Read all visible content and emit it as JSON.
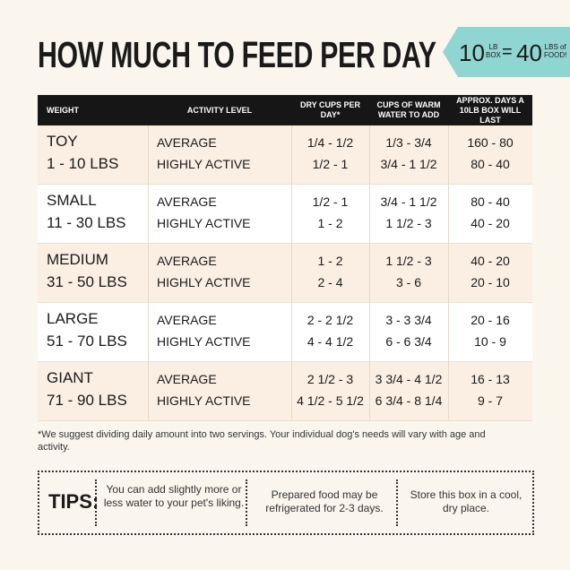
{
  "header": {
    "title": "HOW MUCH TO FEED PER DAY",
    "badge": {
      "num1": "10",
      "unit1_top": "LB",
      "unit1_bottom": "BOX",
      "equals": "=",
      "num2": "40",
      "unit2_top": "LBS of",
      "unit2_bottom": "FOOD!"
    }
  },
  "table": {
    "columns": [
      "WEIGHT",
      "ACTIVITY LEVEL",
      "DRY CUPS PER DAY*",
      "CUPS OF WARM WATER TO ADD",
      "APPROX. DAYS A 10LB BOX WILL LAST"
    ],
    "rows": [
      {
        "size": "TOY",
        "range": "1 - 10 LBS",
        "levels": [
          "AVERAGE",
          "HIGHLY ACTIVE"
        ],
        "dry": [
          "1/4 - 1/2",
          "1/2 - 1"
        ],
        "water": [
          "1/3 - 3/4",
          "3/4 - 1 1/2"
        ],
        "days": [
          "160 - 80",
          "80 - 40"
        ]
      },
      {
        "size": "SMALL",
        "range": "11 - 30 LBS",
        "levels": [
          "AVERAGE",
          "HIGHLY ACTIVE"
        ],
        "dry": [
          "1/2 - 1",
          "1 - 2"
        ],
        "water": [
          "3/4 - 1 1/2",
          "1 1/2 - 3"
        ],
        "days": [
          "80 - 40",
          "40 - 20"
        ]
      },
      {
        "size": "MEDIUM",
        "range": "31 - 50 LBS",
        "levels": [
          "AVERAGE",
          "HIGHLY ACTIVE"
        ],
        "dry": [
          "1 - 2",
          "2 - 4"
        ],
        "water": [
          "1 1/2 - 3",
          "3 - 6"
        ],
        "days": [
          "40 - 20",
          "20 - 10"
        ]
      },
      {
        "size": "LARGE",
        "range": "51 - 70 LBS",
        "levels": [
          "AVERAGE",
          "HIGHLY ACTIVE"
        ],
        "dry": [
          "2 - 2 1/2",
          "4 - 4 1/2"
        ],
        "water": [
          "3 - 3 3/4",
          "6 - 6 3/4"
        ],
        "days": [
          "20 - 16",
          "10 - 9"
        ]
      },
      {
        "size": "GIANT",
        "range": "71 - 90 LBS",
        "levels": [
          "AVERAGE",
          "HIGHLY ACTIVE"
        ],
        "dry": [
          "2 1/2 - 3",
          "4 1/2 - 5 1/2"
        ],
        "water": [
          "3 3/4 - 4 1/2",
          "6 3/4 - 8 1/4"
        ],
        "days": [
          "16 - 13",
          "9 - 7"
        ]
      }
    ]
  },
  "footnote": "*We suggest dividing daily amount into two servings. Your individual dog's needs will vary with age and activity.",
  "tips": {
    "label": "TIPS:",
    "items": [
      "You can add slightly more or less water to your pet's liking.",
      "Prepared food may be refrigerated for 2-3 days.",
      "Store this box in a cool, dry place."
    ]
  }
}
